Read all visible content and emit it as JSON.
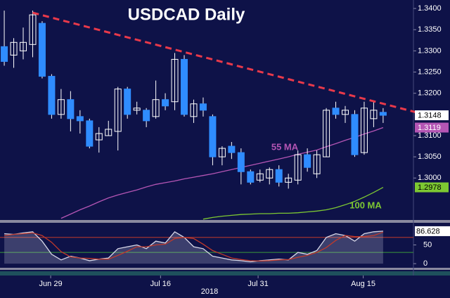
{
  "chart_data": {
    "type": "candlestick",
    "title": "USDCAD Daily",
    "xlabel": "2018",
    "candles": {
      "open": [
        1.331,
        1.329,
        1.33,
        1.3315,
        1.3365,
        1.324,
        1.315,
        1.3185,
        1.3145,
        1.3135,
        1.309,
        1.31,
        1.311,
        1.321,
        1.316,
        1.316,
        1.3145,
        1.3185,
        1.318,
        1.328,
        1.3145,
        1.3175,
        1.3145,
        1.305,
        1.3075,
        1.306,
        1.3015,
        1.2995,
        1.3,
        1.302,
        1.299,
        1.2995,
        1.3055,
        1.301,
        1.305,
        1.3165,
        1.315,
        1.315,
        1.306,
        1.314,
        1.3155
      ],
      "high": [
        1.3395,
        1.333,
        1.3355,
        1.3395,
        1.337,
        1.3245,
        1.321,
        1.3205,
        1.316,
        1.314,
        1.312,
        1.3135,
        1.3215,
        1.3215,
        1.318,
        1.3165,
        1.323,
        1.32,
        1.3295,
        1.329,
        1.3185,
        1.319,
        1.315,
        1.3075,
        1.3085,
        1.307,
        1.302,
        1.302,
        1.3025,
        1.303,
        1.301,
        1.3065,
        1.307,
        1.3065,
        1.3165,
        1.318,
        1.317,
        1.316,
        1.318,
        1.318,
        1.3165
      ],
      "low": [
        1.3265,
        1.326,
        1.328,
        1.3285,
        1.3235,
        1.314,
        1.314,
        1.311,
        1.3105,
        1.307,
        1.306,
        1.31,
        1.3065,
        1.314,
        1.315,
        1.312,
        1.314,
        1.316,
        1.316,
        1.3145,
        1.313,
        1.3145,
        1.303,
        1.303,
        1.3045,
        1.2985,
        1.2985,
        1.299,
        1.2985,
        1.298,
        1.2975,
        1.2985,
        1.3015,
        1.3,
        1.305,
        1.314,
        1.313,
        1.305,
        1.3055,
        1.312,
        1.313
      ],
      "close": [
        1.3275,
        1.332,
        1.332,
        1.3385,
        1.324,
        1.315,
        1.3185,
        1.314,
        1.3135,
        1.3075,
        1.3105,
        1.3115,
        1.321,
        1.315,
        1.3165,
        1.3135,
        1.3185,
        1.317,
        1.328,
        1.315,
        1.3175,
        1.316,
        1.305,
        1.307,
        1.306,
        1.3015,
        1.299,
        1.301,
        1.302,
        1.299,
        1.3,
        1.3055,
        1.3025,
        1.3055,
        1.316,
        1.315,
        1.316,
        1.3055,
        1.3165,
        1.316,
        1.3148
      ]
    },
    "up_color": "#ffffff",
    "down_color": "#2f8cff",
    "last_color": "#ffffff",
    "xlim": [
      -0.45,
      43.2
    ],
    "xticks": [
      {
        "value": 4.9,
        "label": "Jun 29"
      },
      {
        "value": 16.5,
        "label": "Jul 16"
      },
      {
        "value": 26.8,
        "label": "Jul 31"
      },
      {
        "value": 37.9,
        "label": "Aug 15"
      }
    ],
    "ylim": [
      1.2901,
      1.342
    ],
    "yticks": [
      {
        "value": 1.34,
        "label": "1.3400"
      },
      {
        "value": 1.335,
        "label": "1.3350"
      },
      {
        "value": 1.33,
        "label": "1.3300"
      },
      {
        "value": 1.325,
        "label": "1.3250"
      },
      {
        "value": 1.32,
        "label": "1.3200"
      },
      {
        "value": 1.31,
        "label": "1.3100"
      },
      {
        "value": 1.305,
        "label": "1.3050"
      },
      {
        "value": 1.3,
        "label": "1.3000"
      }
    ],
    "series": [
      {
        "name": "55 MA",
        "color": "#b455b4",
        "values": [
          null,
          null,
          null,
          null,
          null,
          null,
          1.2905,
          1.2915,
          1.2925,
          1.2934,
          1.2944,
          1.2953,
          1.296,
          1.2966,
          1.2972,
          1.2979,
          1.2985,
          1.2989,
          1.2993,
          1.2998,
          1.3002,
          1.3006,
          1.301,
          1.3015,
          1.302,
          1.3025,
          1.303,
          1.3035,
          1.304,
          1.3045,
          1.305,
          1.3056,
          1.3061,
          1.3066,
          1.3074,
          1.3081,
          1.3089,
          1.3096,
          1.3104,
          1.3111,
          1.3119
        ]
      },
      {
        "name": "100 MA",
        "color": "#7dc832",
        "values": [
          null,
          null,
          null,
          null,
          null,
          null,
          null,
          null,
          null,
          null,
          null,
          null,
          null,
          null,
          null,
          null,
          null,
          null,
          null,
          null,
          null,
          1.2903,
          1.2907,
          1.291,
          1.2912,
          1.2914,
          1.2915,
          1.2916,
          1.2916,
          1.2917,
          1.2917,
          1.2918,
          1.292,
          1.2922,
          1.2925,
          1.293,
          1.2937,
          1.2945,
          1.2955,
          1.2966,
          1.2978
        ]
      }
    ],
    "trendline": {
      "x": [
        3,
        43.5
      ],
      "y": [
        1.339,
        1.3155
      ],
      "color": "#e8394a"
    },
    "oscillator": {
      "ylim": [
        -11,
        109
      ],
      "yticks": [
        50,
        0
      ],
      "levels": [
        {
          "value": 70,
          "color": "#c0392b"
        },
        {
          "value": 30,
          "color": "#3a9a3a"
        }
      ],
      "series": [
        {
          "color": "#d8d8e8",
          "values": [
            80,
            78,
            82,
            85,
            60,
            25,
            10,
            20,
            15,
            8,
            12,
            15,
            40,
            45,
            50,
            40,
            60,
            55,
            85,
            70,
            45,
            40,
            20,
            15,
            10,
            8,
            5,
            8,
            10,
            12,
            10,
            30,
            25,
            35,
            70,
            80,
            75,
            60,
            80,
            85,
            86.628
          ]
        },
        {
          "color": "#c0392b",
          "values": [
            75,
            78,
            80,
            82,
            75,
            57,
            32,
            18,
            15,
            14,
            12,
            12,
            22,
            33,
            45,
            45,
            50,
            52,
            67,
            70,
            67,
            52,
            35,
            25,
            15,
            11,
            8,
            7,
            8,
            10,
            11,
            17,
            22,
            30,
            43,
            62,
            75,
            72,
            72,
            75,
            84
          ]
        }
      ]
    }
  }
}
